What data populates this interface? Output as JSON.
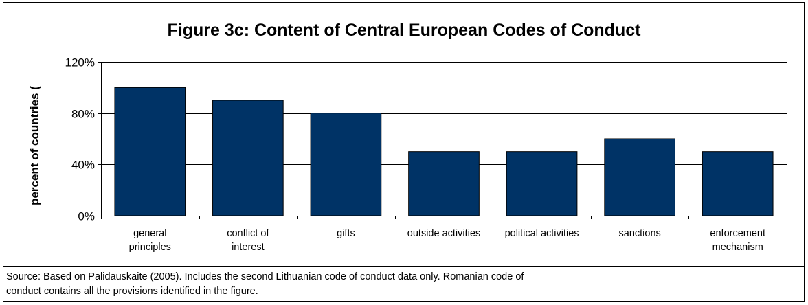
{
  "source_note": {
    "line1": "Source: Based on Palidauskaite (2005). Includes the second Lithuanian code of conduct data only. Romanian code of",
    "line2": "conduct contains all the provisions identified in the figure."
  },
  "colors": {
    "bar": "#003366",
    "grid": "#000000",
    "axis": "#000000"
  },
  "chart_data": {
    "type": "bar",
    "title": "Figure 3c: Content of Central European Codes of Conduct",
    "xlabel": "",
    "ylabel": "percent of countries (",
    "ylim": [
      0,
      120
    ],
    "yticks": [
      0,
      40,
      80,
      120
    ],
    "ytick_labels": [
      "0%",
      "40%",
      "80%",
      "120%"
    ],
    "grid": true,
    "legend": "none",
    "categories": [
      [
        "general",
        "principles"
      ],
      [
        "conflict of",
        "interest"
      ],
      [
        "gifts"
      ],
      [
        "outside activities"
      ],
      [
        "political activities"
      ],
      [
        "sanctions"
      ],
      [
        "enforcement",
        "mechanism"
      ]
    ],
    "values": [
      100,
      90,
      80,
      50,
      50,
      60,
      50
    ]
  }
}
